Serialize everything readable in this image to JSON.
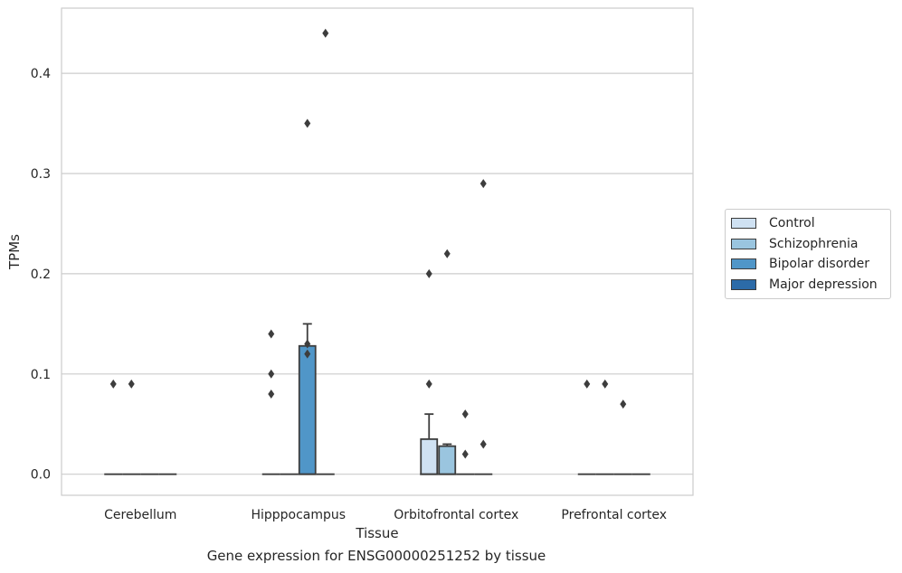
{
  "chart_data": {
    "type": "box",
    "title": "",
    "caption": "Gene expression for ENSG00000251252 by tissue",
    "xlabel": "Tissue",
    "ylabel": "TPMs",
    "ylim": [
      -0.021,
      0.465
    ],
    "yticks": [
      "0.0",
      "0.1",
      "0.2",
      "0.3",
      "0.4"
    ],
    "yticks_values": [
      0.0,
      0.1,
      0.2,
      0.3,
      0.4
    ],
    "grid": true,
    "legend_position": "right",
    "categories": [
      "Cerebellum",
      "Hipppocampus",
      "Orbitofrontal cortex",
      "Prefrontal cortex"
    ],
    "series": [
      {
        "name": "Control",
        "color": "#cfe1f2",
        "boxes": [
          {
            "q1": 0,
            "median": 0,
            "q3": 0,
            "whisker_low": 0,
            "whisker_high": 0,
            "outliers": [
              0.09
            ]
          },
          {
            "q1": 0,
            "median": 0,
            "q3": 0,
            "whisker_low": 0,
            "whisker_high": 0,
            "outliers": [
              0.14,
              0.1,
              0.08
            ]
          },
          {
            "q1": 0,
            "median": 0,
            "q3": 0.035,
            "whisker_low": 0,
            "whisker_high": 0.06,
            "outliers": [
              0.2,
              0.09
            ]
          },
          {
            "q1": 0,
            "median": 0,
            "q3": 0,
            "whisker_low": 0,
            "whisker_high": 0,
            "outliers": [
              0.09
            ]
          }
        ]
      },
      {
        "name": "Schizophrenia",
        "color": "#9ac5df",
        "boxes": [
          {
            "q1": 0,
            "median": 0,
            "q3": 0,
            "whisker_low": 0,
            "whisker_high": 0,
            "outliers": [
              0.09
            ]
          },
          {
            "q1": 0,
            "median": 0,
            "q3": 0,
            "whisker_low": 0,
            "whisker_high": 0,
            "outliers": []
          },
          {
            "q1": 0,
            "median": 0,
            "q3": 0.028,
            "whisker_low": 0,
            "whisker_high": 0.03,
            "outliers": [
              0.22
            ]
          },
          {
            "q1": 0,
            "median": 0,
            "q3": 0,
            "whisker_low": 0,
            "whisker_high": 0,
            "outliers": [
              0.09
            ]
          }
        ]
      },
      {
        "name": "Bipolar disorder",
        "color": "#5096c8",
        "boxes": [
          {
            "q1": 0,
            "median": 0,
            "q3": 0,
            "whisker_low": 0,
            "whisker_high": 0,
            "outliers": []
          },
          {
            "q1": 0,
            "median": 0,
            "q3": 0.128,
            "whisker_low": 0,
            "whisker_high": 0.15,
            "outliers": [
              0.35,
              0.13,
              0.12
            ]
          },
          {
            "q1": 0,
            "median": 0,
            "q3": 0,
            "whisker_low": 0,
            "whisker_high": 0,
            "outliers": [
              0.06,
              0.02
            ]
          },
          {
            "q1": 0,
            "median": 0,
            "q3": 0,
            "whisker_low": 0,
            "whisker_high": 0,
            "outliers": [
              0.07
            ]
          }
        ]
      },
      {
        "name": "Major depression",
        "color": "#2c6ba8",
        "boxes": [
          {
            "q1": 0,
            "median": 0,
            "q3": 0,
            "whisker_low": 0,
            "whisker_high": 0,
            "outliers": []
          },
          {
            "q1": 0,
            "median": 0,
            "q3": 0,
            "whisker_low": 0,
            "whisker_high": 0,
            "outliers": [
              0.44
            ]
          },
          {
            "q1": 0,
            "median": 0,
            "q3": 0,
            "whisker_low": 0,
            "whisker_high": 0,
            "outliers": [
              0.29,
              0.03
            ]
          },
          {
            "q1": 0,
            "median": 0,
            "q3": 0,
            "whisker_low": 0,
            "whisker_high": 0,
            "outliers": []
          }
        ]
      }
    ]
  }
}
